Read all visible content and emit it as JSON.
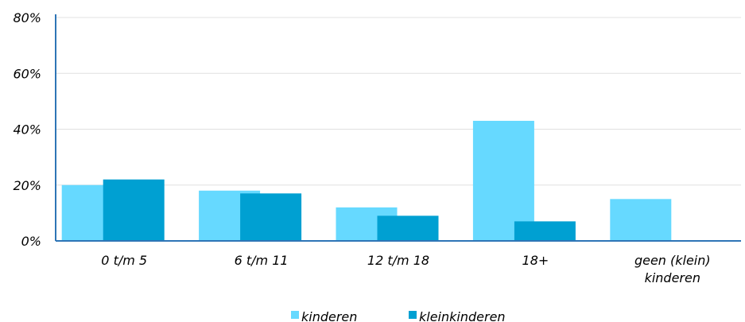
{
  "chart_data": {
    "type": "bar",
    "categories": [
      "0 t/m 5",
      "6 t/m 11",
      "12 t/m 18",
      "18+",
      "geen (klein) kinderen"
    ],
    "category_lines": [
      [
        "0 t/m 5"
      ],
      [
        "6 t/m 11"
      ],
      [
        "12 t/m 18"
      ],
      [
        "18+"
      ],
      [
        "geen (klein)",
        "kinderen"
      ]
    ],
    "series": [
      {
        "name": "kinderen",
        "values": [
          20,
          18,
          12,
          43,
          15
        ],
        "color": "#66D9FF"
      },
      {
        "name": "kleinkinderen",
        "values": [
          22,
          17,
          9,
          7,
          0
        ],
        "color": "#00A0D2"
      }
    ],
    "ylim": [
      0,
      80
    ],
    "yticks": [
      0,
      20,
      40,
      60,
      80
    ],
    "ytick_labels": [
      "0%",
      "20%",
      "40%",
      "60%",
      "80%"
    ],
    "grid": true,
    "legend_position": "bottom",
    "axis_color": "#2E75B6",
    "grid_color": "#E0E0E0"
  }
}
